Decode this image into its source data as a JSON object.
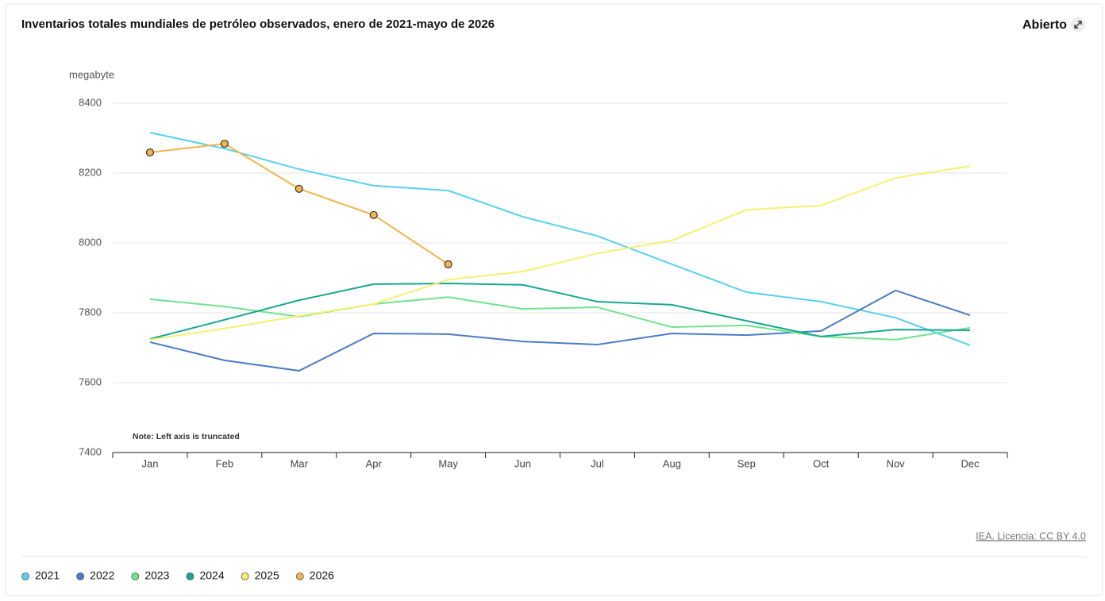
{
  "chart_data": {
    "type": "line",
    "title": "Inventarios totales mundiales de petróleo observados, enero de 2021-mayo de 2026",
    "button": "Abierto",
    "y_label": "megabyte",
    "note": "Note: Left axis is truncated",
    "source": "IEA. Licencia: CC BY 4.0",
    "categories": [
      "Jan",
      "Feb",
      "Mar",
      "Apr",
      "May",
      "Jun",
      "Jul",
      "Aug",
      "Sep",
      "Oct",
      "Nov",
      "Dec"
    ],
    "ylim": [
      7400,
      8400
    ],
    "yticks": [
      7400,
      7600,
      7800,
      8000,
      8200,
      8400
    ],
    "grid": true,
    "legend": "bottom",
    "series": [
      {
        "name": "2021",
        "color": "#56d1ee",
        "values": [
          8316,
          8270,
          8211,
          8164,
          8150,
          8075,
          8020,
          7939,
          7859,
          7832,
          7786,
          7707
        ]
      },
      {
        "name": "2022",
        "color": "#4a7cc7",
        "values": [
          7716,
          7664,
          7634,
          7741,
          7739,
          7718,
          7709,
          7741,
          7736,
          7748,
          7864,
          7793
        ]
      },
      {
        "name": "2023",
        "color": "#6ee38f",
        "values": [
          7839,
          7818,
          7789,
          7825,
          7845,
          7811,
          7816,
          7759,
          7764,
          7732,
          7723,
          7757
        ]
      },
      {
        "name": "2024",
        "color": "#16a890",
        "values": [
          7725,
          7780,
          7836,
          7882,
          7884,
          7880,
          7832,
          7823,
          7777,
          7732,
          7752,
          7750
        ]
      },
      {
        "name": "2025",
        "color": "#f7f06e",
        "values": [
          7723,
          7755,
          7791,
          7825,
          7895,
          7918,
          7970,
          8007,
          8095,
          8107,
          8186,
          8220
        ]
      },
      {
        "name": "2026",
        "color": "#f0b44c",
        "markers": true,
        "values": [
          8259,
          8284,
          8155,
          8080,
          7939,
          null,
          null,
          null,
          null,
          null,
          null,
          null
        ]
      }
    ]
  }
}
